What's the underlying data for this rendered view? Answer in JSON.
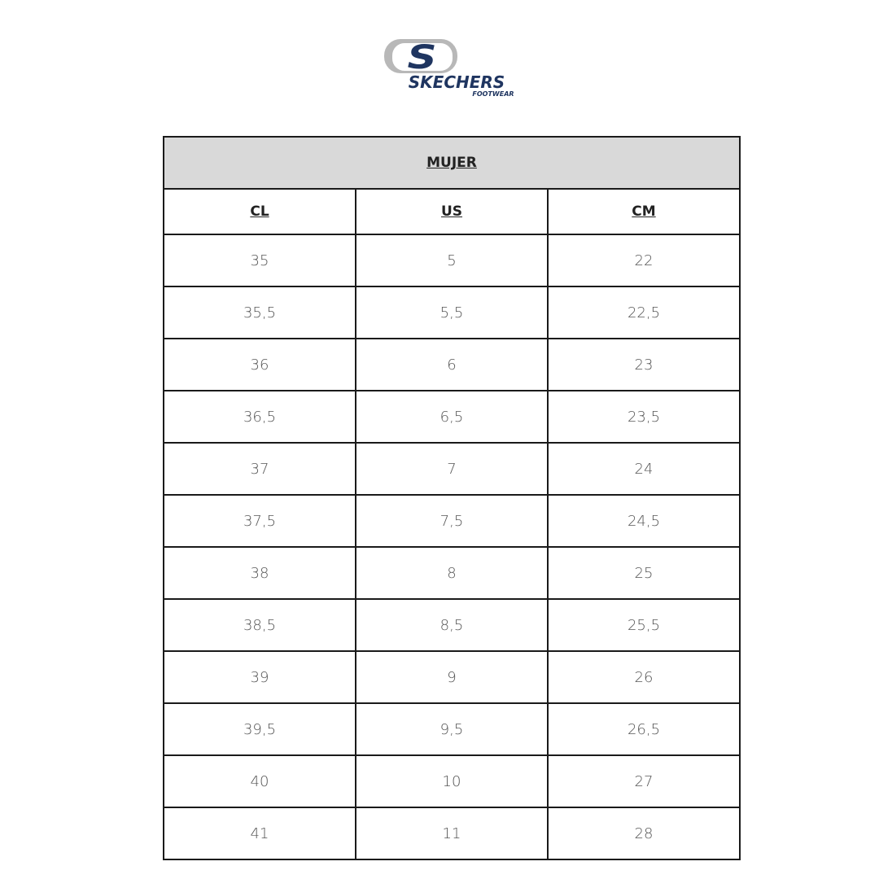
{
  "logo": {
    "brand": "SKECHERS",
    "sub": "FOOTWEAR",
    "colors": {
      "navy": "#1f3560",
      "gray": "#b8b8b8"
    }
  },
  "table": {
    "title": "MUJER",
    "columns": [
      "CL",
      "US",
      "CM"
    ],
    "rows": [
      [
        "35",
        "5",
        "22"
      ],
      [
        "35,5",
        "5,5",
        "22,5"
      ],
      [
        "36",
        "6",
        "23"
      ],
      [
        "36,5",
        "6,5",
        "23,5"
      ],
      [
        "37",
        "7",
        "24"
      ],
      [
        "37,5",
        "7,5",
        "24,5"
      ],
      [
        "38",
        "8",
        "25"
      ],
      [
        "38,5",
        "8,5",
        "25,5"
      ],
      [
        "39",
        "9",
        "26"
      ],
      [
        "39,5",
        "9,5",
        "26,5"
      ],
      [
        "40",
        "10",
        "27"
      ],
      [
        "41",
        "11",
        "28"
      ]
    ]
  }
}
